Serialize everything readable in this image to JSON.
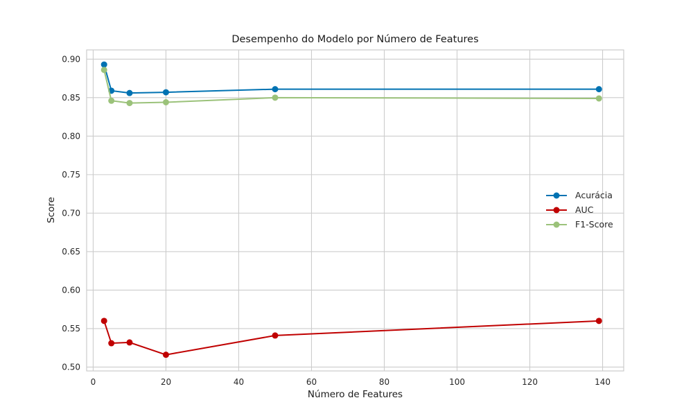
{
  "chart_data": {
    "type": "line",
    "title": "Desempenho do Modelo por Número de Features",
    "xlabel": "Número de Features",
    "ylabel": "Score",
    "x": [
      3,
      5,
      10,
      20,
      50,
      139
    ],
    "xlim": [
      -1.8,
      145.8
    ],
    "ylim": [
      0.495,
      0.912
    ],
    "xticks": [
      0,
      20,
      40,
      60,
      80,
      100,
      120,
      140
    ],
    "yticks": [
      0.5,
      0.55,
      0.6,
      0.65,
      0.7,
      0.75,
      0.8,
      0.85,
      0.9
    ],
    "grid": true,
    "legend_position": "center-right",
    "series": [
      {
        "name": "Acurácia",
        "color": "#0072b2",
        "values": [
          0.893,
          0.859,
          0.856,
          0.857,
          0.861,
          0.861
        ]
      },
      {
        "name": "AUC",
        "color": "#c00000",
        "values": [
          0.56,
          0.531,
          0.532,
          0.516,
          0.541,
          0.56
        ]
      },
      {
        "name": "F1-Score",
        "color": "#9bc27a",
        "values": [
          0.886,
          0.846,
          0.843,
          0.844,
          0.85,
          0.849
        ]
      }
    ]
  }
}
